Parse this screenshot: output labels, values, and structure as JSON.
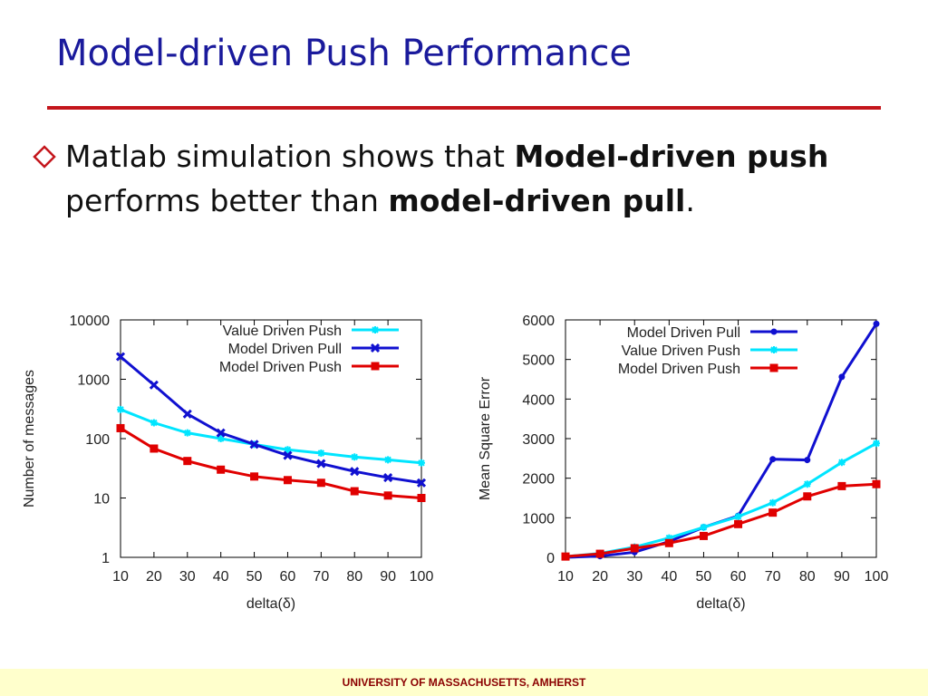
{
  "slide": {
    "title": "Model-driven Push Performance",
    "bullet": {
      "t1": "Matlab simulation shows that ",
      "b1": "Model-driven push",
      "t2": " performs better than ",
      "b2": "model-driven pull",
      "t3": "."
    },
    "footer": "UNIVERSITY OF MASSACHUSETTS, AMHERST",
    "colors": {
      "title": "#1a1a9c",
      "rule": "#c4161c",
      "footer_bg": "#ffffcc",
      "footer_text": "#8b0000"
    }
  },
  "chart_data": [
    {
      "type": "line",
      "yscale": "log",
      "xlabel": "delta(δ)",
      "ylabel": "Number of messages",
      "ylim": [
        1,
        10000
      ],
      "yticks": [
        1,
        10,
        100,
        1000,
        10000
      ],
      "yticklabels": [
        "1",
        "10",
        "100",
        "1000",
        "10000"
      ],
      "x": [
        10,
        20,
        30,
        40,
        50,
        60,
        70,
        80,
        90,
        100
      ],
      "legend_position": "top-right",
      "series": [
        {
          "name": "Value Driven Push",
          "color": "#00e5ff",
          "marker": "star",
          "values": [
            310,
            185,
            125,
            100,
            80,
            65,
            57,
            49,
            44,
            39
          ]
        },
        {
          "name": "Model Driven Pull",
          "color": "#1010d0",
          "marker": "x",
          "values": [
            2400,
            800,
            260,
            125,
            80,
            52,
            38,
            28,
            22,
            18
          ]
        },
        {
          "name": "Model Driven Push",
          "color": "#e00000",
          "marker": "square",
          "values": [
            150,
            68,
            42,
            30,
            23,
            20,
            18,
            13,
            11,
            10
          ]
        }
      ]
    },
    {
      "type": "line",
      "xlabel": "delta(δ)",
      "ylabel": "Mean Square Error",
      "ylim": [
        0,
        6000
      ],
      "yticks": [
        0,
        1000,
        2000,
        3000,
        4000,
        5000,
        6000
      ],
      "x": [
        10,
        20,
        30,
        40,
        50,
        60,
        70,
        80,
        90,
        100
      ],
      "legend_position": "top-left",
      "series": [
        {
          "name": "Model Driven Pull",
          "color": "#1010d0",
          "marker": "dot",
          "values": [
            0,
            30,
            130,
            400,
            760,
            1050,
            2480,
            2460,
            4560,
            5900
          ]
        },
        {
          "name": "Value Driven Push",
          "color": "#00e5ff",
          "marker": "star",
          "values": [
            20,
            100,
            260,
            490,
            760,
            1030,
            1380,
            1850,
            2400,
            2880
          ]
        },
        {
          "name": "Model Driven Push",
          "color": "#e00000",
          "marker": "square",
          "values": [
            20,
            90,
            230,
            360,
            540,
            840,
            1130,
            1540,
            1800,
            1850
          ]
        }
      ]
    }
  ]
}
